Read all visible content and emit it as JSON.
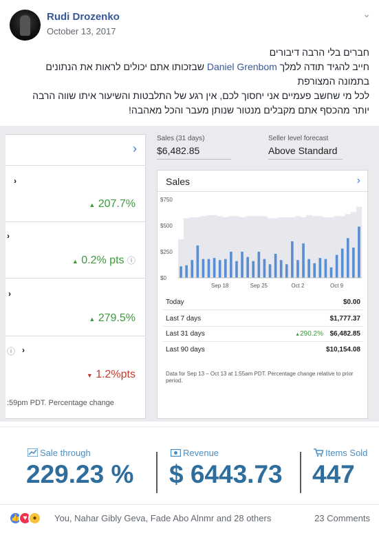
{
  "post": {
    "author": "Rudi Drozenko",
    "date": "October 13, 2017",
    "lines": {
      "l1": "חברים בלי הרבה דיבורים",
      "l2_pre": "חייב להגיד תודה למלך",
      "l2_link": "Daniel Grenbom",
      "l2_post": "שבזכותו אתם יכולים לראות את הנתונים",
      "l3": "בתמונה המצורפת",
      "l4": "לכל מי שחשב פעמיים אני יחסוך לכם, אין רגע של התלבטות והשיעור איתו שווה הרבה",
      "l5": "יותר מהכסף אתם מקבלים מנטור שנותן מעבר והכל מאהבה!"
    }
  },
  "left_panel": {
    "metrics": [
      "207.7%",
      "0.2% pts",
      "279.5%",
      "1.2%pts"
    ],
    "footer": ":59pm PDT. Percentage change"
  },
  "seller": {
    "sales_label": "Sales (31 days)",
    "sales_value": "$6,482.85",
    "forecast_label": "Seller level forecast",
    "forecast_value": "Above Standard"
  },
  "sales_card": {
    "title": "Sales",
    "rows": [
      {
        "label": "Today",
        "change": "",
        "value": "$0.00"
      },
      {
        "label": "Last 7 days",
        "change": "",
        "value": "$1,777.37"
      },
      {
        "label": "Last 31 days",
        "change": "290.2%",
        "value": "$6,482.85"
      },
      {
        "label": "Last 90 days",
        "change": "",
        "value": "$10,154.08"
      }
    ],
    "note": "Data for Sep 13 – Oct 13 at 1:55am PDT. Percentage change relative to prior period."
  },
  "chart_data": {
    "type": "bar",
    "title": "Sales",
    "ylim": [
      0,
      750
    ],
    "yticks": [
      "$0",
      "$250",
      "$500",
      "$750"
    ],
    "xticks": [
      {
        "label": "Sep 18",
        "index": 7
      },
      {
        "label": "Sep 25",
        "index": 14
      },
      {
        "label": "Oct 2",
        "index": 21
      },
      {
        "label": "Oct 9",
        "index": 28
      }
    ],
    "values": [
      110,
      120,
      170,
      310,
      180,
      180,
      190,
      170,
      180,
      250,
      160,
      250,
      200,
      160,
      250,
      180,
      130,
      230,
      170,
      130,
      350,
      170,
      330,
      180,
      140,
      190,
      180,
      100,
      220,
      280,
      380,
      290,
      490
    ],
    "background_values": [
      370,
      570,
      580,
      580,
      590,
      600,
      600,
      590,
      580,
      590,
      590,
      580,
      590,
      590,
      590,
      590,
      570,
      570,
      580,
      580,
      580,
      590,
      580,
      600,
      590,
      590,
      580,
      580,
      590,
      590,
      610,
      630,
      680
    ],
    "bar_color": "#5b8ed0",
    "bg_color": "#e6e8ee"
  },
  "stats": {
    "sale_through_label": "Sale through",
    "sale_through_value": "229.23 %",
    "revenue_label": "Revenue",
    "revenue_value": "$ 6443.73",
    "items_sold_label": "Items Sold",
    "items_sold_value": "447"
  },
  "reactions": {
    "names": "You, Nahar Gibly Geva, Fade Abo Alnmr and 28 others",
    "comments": "23 Comments"
  }
}
